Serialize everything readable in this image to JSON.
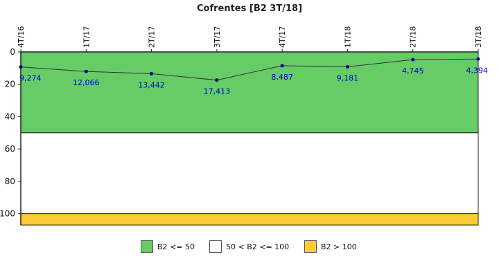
{
  "chart_data": {
    "type": "line",
    "title": "Cofrentes [B2 3T/18]",
    "categories": [
      "4T/16",
      "1T/17",
      "2T/17",
      "3T/17",
      "4T/17",
      "1T/18",
      "2T/18",
      "3T/18"
    ],
    "series": [
      {
        "values": [
          9.274,
          12.066,
          13.442,
          17.413,
          8.487,
          9.181,
          4.745,
          4.394
        ],
        "data_labels": [
          "9,274",
          "12,066",
          "13,442",
          "17,413",
          "8,487",
          "9,181",
          "4,745",
          "4,394"
        ]
      }
    ],
    "y_ticks": [
      "0",
      "20",
      "40",
      "60",
      "80",
      "100"
    ],
    "ylim": [
      0,
      107
    ],
    "y_inverted": true,
    "bands": [
      {
        "label": "B2 <= 50",
        "from": 0,
        "to": 50,
        "color": "#66cc66"
      },
      {
        "label": "50 < B2 <= 100",
        "from": 50,
        "to": 100,
        "color": "#ffffff"
      },
      {
        "label": "B2 > 100",
        "from": 100,
        "to": 107,
        "color": "#ffcc33"
      }
    ],
    "line_color": "#333333",
    "marker_color": "#00008b",
    "label_color": "#0000cc",
    "grid": false,
    "legend_position": "bottom"
  }
}
